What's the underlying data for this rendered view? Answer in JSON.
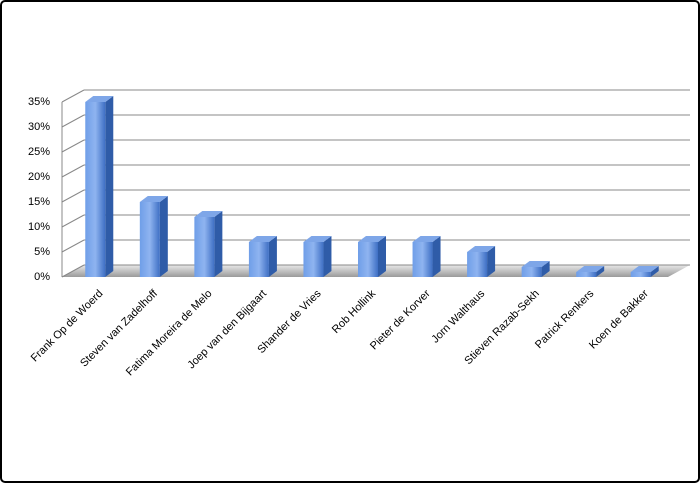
{
  "chart_data": {
    "type": "bar",
    "categories": [
      "Frank Op de Woerd",
      "Steven van Zadelhoff",
      "Fatima Moreira de Melo",
      "Joep van den Bijgaart",
      "Shander de Vries",
      "Rob Hollink",
      "Pieter de Korver",
      "Jorn Walthaus",
      "Stieven Razab-Sekh",
      "Patrick Renkers",
      "Koen de Bakker"
    ],
    "values": [
      35,
      15,
      12,
      7,
      7,
      7,
      7,
      5,
      2,
      1,
      1
    ],
    "color": "#4a7fd6",
    "ylim": [
      0,
      35
    ],
    "yticks": [
      {
        "value": 0,
        "label": "0%"
      },
      {
        "value": 5,
        "label": "5%"
      },
      {
        "value": 10,
        "label": "10%"
      },
      {
        "value": 15,
        "label": "15%"
      },
      {
        "value": 20,
        "label": "20%"
      },
      {
        "value": 25,
        "label": "25%"
      },
      {
        "value": 30,
        "label": "30%"
      },
      {
        "value": 35,
        "label": "35%"
      }
    ],
    "grid": true
  }
}
